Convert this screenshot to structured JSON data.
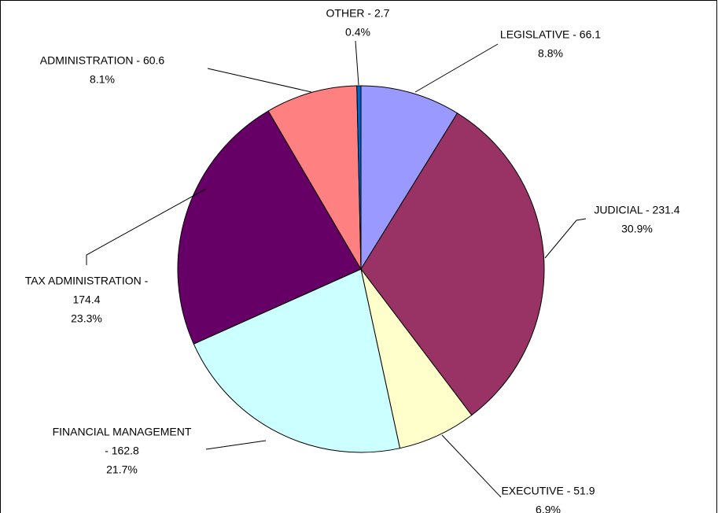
{
  "chart_data": {
    "type": "pie",
    "categories": [
      [
        "LEGISLATIVE - 66.1"
      ],
      [
        "JUDICIAL - 231.4"
      ],
      [
        "EXECUTIVE - 51.9"
      ],
      [
        "FINANCIAL MANAGEMENT",
        "- 162.8"
      ],
      [
        "TAX ADMINISTRATION -",
        "174.4"
      ],
      [
        "ADMINISTRATION - 60.6"
      ],
      [
        "OTHER - 2.7"
      ]
    ],
    "values": [
      66.1,
      231.4,
      51.9,
      162.8,
      174.4,
      60.6,
      2.7
    ],
    "percent_labels": [
      "8.8%",
      "30.9%",
      "6.9%",
      "21.7%",
      "23.3%",
      "8.1%",
      "0.4%"
    ],
    "colors": [
      "#9999ff",
      "#993366",
      "#ffffcc",
      "#ccffff",
      "#660066",
      "#ff8080",
      "#0066cc"
    ]
  }
}
